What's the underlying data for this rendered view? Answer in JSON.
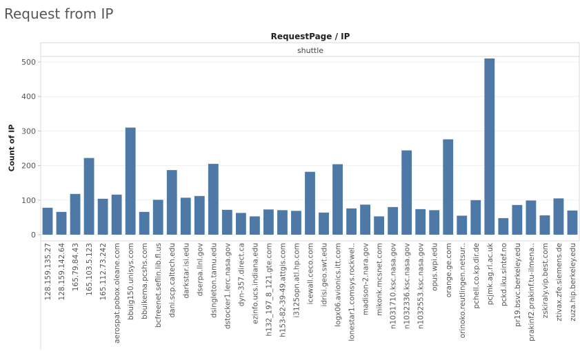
{
  "sheet": {
    "title": "Request from IP"
  },
  "chart_data": {
    "type": "bar",
    "title": "Request from IP",
    "column_header": "RequestPage / IP",
    "pane_label": "shuttle",
    "ylabel": "Count of IP",
    "ylim": [
      0,
      510
    ],
    "yticks": [
      0,
      100,
      200,
      300,
      400,
      500
    ],
    "grid": true,
    "bar_color": "#4e79a7",
    "categories": [
      "128.159.135.27",
      "128.159.142.64",
      "165.79.84.43",
      "165.103.5.123",
      "165.112.73.242",
      "aerospat.pobox.oleane.com",
      "bbuig150.unisys.com",
      "bbuikema.pcshs.com",
      "bcfreenet.seflin.lib.fl.us",
      "dani.scp.caltech.edu",
      "darkstar.isi.edu",
      "dserpa.llnl.gov",
      "dsingleton.tamu.edu",
      "dstocker1.lerc.nasa.gov",
      "dyn-357.direct.ca",
      "ezinfo.ucs.indiana.edu",
      "h132_197_8_121.gte.com",
      "h153-82-39-49.attgis.com",
      "i3125opn.atl.hp.com",
      "icewall.ceco.com",
      "idrisi.geo.swt.edu",
      "logx06.avionics.itt.com",
      "lonestar1.comsys.rockwel..",
      "madison-2.nara.gov",
      "mikonk.mcsnet.com",
      "n1031710.ksc.nasa.gov",
      "n1032336.ksc.nasa.gov",
      "n1032553.ksc.nasa.gov",
      "opus.wpi.edu",
      "orange.ge.com",
      "orinoko.reutlingen.netsur..",
      "pchell.co.kp.dir.de",
      "pcjmk.ag.rl.ac.uk",
      "pckd.iku.sintef.no",
      "pr19.bsvc.berkeley.edu",
      "prakinf2.prakinf.tu-ilmena..",
      "zskiraly.vip.best.com",
      "ztivax.zfe.siemens.de",
      "zuza.hip.berkeley.edu"
    ],
    "values": [
      78,
      66,
      118,
      222,
      104,
      116,
      310,
      66,
      101,
      187,
      107,
      112,
      205,
      72,
      63,
      53,
      73,
      71,
      69,
      182,
      64,
      204,
      76,
      87,
      53,
      80,
      244,
      74,
      71,
      276,
      55,
      100,
      510,
      48,
      86,
      99,
      56,
      105,
      70
    ]
  }
}
